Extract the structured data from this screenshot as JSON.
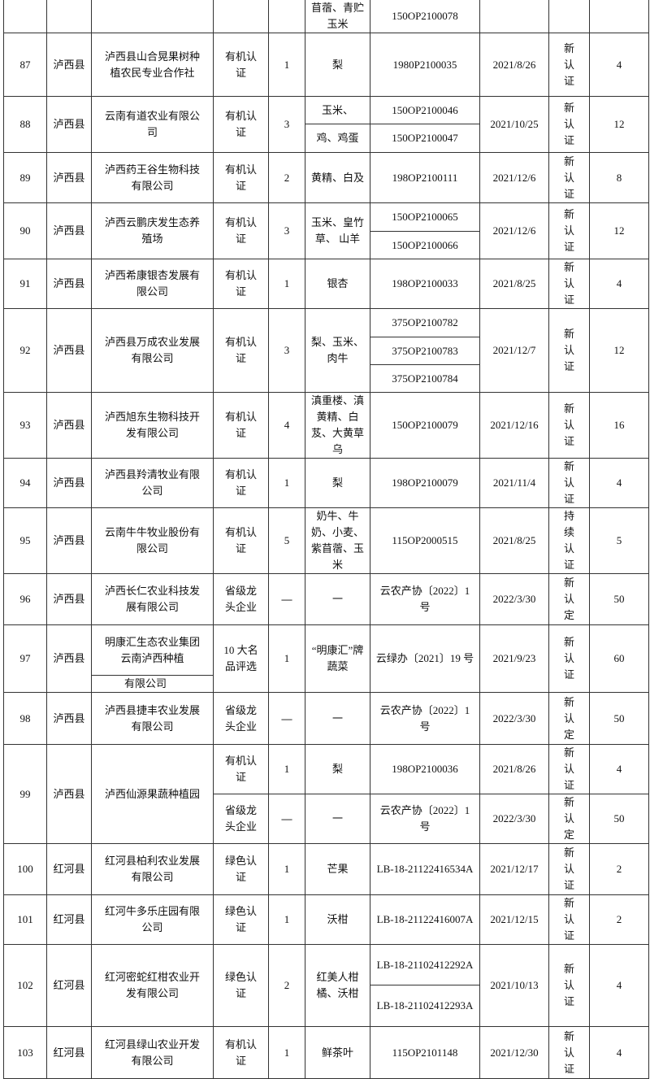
{
  "table": {
    "rows": [
      {
        "product": "苜蓿、青贮玉米",
        "certs": [
          "150OP2100078"
        ]
      },
      {
        "no": 87,
        "county": "泸西县",
        "company": "泸西县山合晃果树种植农民专业合作社",
        "type": "有机认证",
        "count": 1,
        "product": "梨",
        "certs": [
          "1980P2100035"
        ],
        "date": "2021/8/26",
        "status": "新认证",
        "score": 4
      },
      {
        "no": 88,
        "county": "泸西县",
        "company": "云南有道农业有限公司",
        "type": "有机认证",
        "count": 3,
        "product": [
          "玉米、",
          "鸡、鸡蛋"
        ],
        "certs": [
          "150OP2100046",
          "150OP2100047"
        ],
        "date": "2021/10/25",
        "status": "新认证",
        "score": 12
      },
      {
        "no": 89,
        "county": "泸西县",
        "company": "泸西药王谷生物科技有限公司",
        "type": "有机认证",
        "count": 2,
        "product": "黄精、白及",
        "certs": [
          "198OP2100111"
        ],
        "date": "2021/12/6",
        "status": "新认证",
        "score": 8
      },
      {
        "no": 90,
        "county": "泸西县",
        "company": "泸西云鹏庆发生态养殖场",
        "type": "有机认证",
        "count": 3,
        "product": "玉米、皇竹草、 山羊",
        "certs": [
          "150OP2100065",
          "150OP2100066"
        ],
        "date": "2021/12/6",
        "status": "新认证",
        "score": 12
      },
      {
        "no": 91,
        "county": "泸西县",
        "company": "泸西希康银杏发展有限公司",
        "type": "有机认证",
        "count": 1,
        "product": "银杏",
        "certs": [
          "198OP2100033"
        ],
        "date": "2021/8/25",
        "status": "新认证",
        "score": 4
      },
      {
        "no": 92,
        "county": "泸西县",
        "company": "泸西县万成农业发展有限公司",
        "type": "有机认证",
        "count": 3,
        "product": "梨、玉米、肉牛",
        "certs": [
          "375OP2100782",
          "375OP2100783",
          "375OP2100784"
        ],
        "date": "2021/12/7",
        "status": "新认证",
        "score": 12
      },
      {
        "no": 93,
        "county": "泸西县",
        "company": "泸西旭东生物科技开发有限公司",
        "type": "有机认证",
        "count": 4,
        "product": "滇重楼、滇黄精、白芨、大黄草乌",
        "certs": [
          "150OP2100079"
        ],
        "date": "2021/12/16",
        "status": "新认证",
        "score": 16
      },
      {
        "no": 94,
        "county": "泸西县",
        "company": "泸西县羚清牧业有限公司",
        "type": "有机认证",
        "count": 1,
        "product": "梨",
        "certs": [
          "198OP2100079"
        ],
        "date": "2021/11/4",
        "status": "新认证",
        "score": 4
      },
      {
        "no": 95,
        "county": "泸西县",
        "company": "云南牛牛牧业股份有限公司",
        "type": "有机认证",
        "count": 5,
        "product": "奶牛、牛奶、小麦、紫苜蓿、玉米",
        "certs": [
          "115OP2000515"
        ],
        "date": "2021/8/25",
        "status": "持续认证",
        "score": 5
      },
      {
        "no": 96,
        "county": "泸西县",
        "company": "泸西长仁农业科技发展有限公司",
        "type": "省级龙头企业",
        "count": "—",
        "product": "一",
        "certs": [
          "云农产协〔2022〕1 号"
        ],
        "date": "2022/3/30",
        "status": "新认定",
        "score": 50
      },
      {
        "no": 97,
        "county": "泸西县",
        "company": [
          "明康汇生态农业集团云南泸西种植",
          "有限公司"
        ],
        "type": "10 大名品评选",
        "count": 1,
        "product": "“明康汇”牌蔬菜",
        "certs": [
          "云绿办〔2021〕19 号"
        ],
        "date": "2021/9/23",
        "status": "新认证",
        "score": 60
      },
      {
        "no": 98,
        "county": "泸西县",
        "company": "泸西县捷丰农业发展有限公司",
        "type": "省级龙头企业",
        "count": "—",
        "product": "一",
        "certs": [
          "云农产协〔2022〕1 号"
        ],
        "date": "2022/3/30",
        "status": "新认定",
        "score": 50
      },
      {
        "no": 99,
        "county": "泸西县",
        "company": "泸西仙源果蔬种植园",
        "entries": [
          {
            "type": "有机认证",
            "count": 1,
            "product": "梨",
            "cert": "198OP2100036",
            "date": "2021/8/26",
            "status": "新认证",
            "score": 4
          },
          {
            "type": "省级龙头企业",
            "count": "—",
            "product": "一",
            "cert": "云农产协〔2022〕1 号",
            "date": "2022/3/30",
            "status": "新认定",
            "score": 50
          }
        ]
      },
      {
        "no": 100,
        "county": "红河县",
        "company": "红河县柏利农业发展有限公司",
        "type": "绿色认证",
        "count": 1,
        "product": "芒果",
        "certs": [
          "LB-18-21122416534A"
        ],
        "date": "2021/12/17",
        "status": "新认证",
        "score": 2
      },
      {
        "no": 101,
        "county": "红河县",
        "company": "红河牛多乐庄园有限公司",
        "type": "绿色认证",
        "count": 1,
        "product": "沃柑",
        "certs": [
          "LB-18-21122416007A"
        ],
        "date": "2021/12/15",
        "status": "新认证",
        "score": 2
      },
      {
        "no": 102,
        "county": "红河县",
        "company": "红河密蛇红柑农业开发有限公司",
        "type": "绿色认证",
        "count": 2,
        "product": "红美人柑橘、沃柑",
        "certs": [
          "LB-18-21102412292A",
          "LB-18-21102412293A"
        ],
        "date": "2021/10/13",
        "status": "新认证",
        "score": 4
      },
      {
        "no": 103,
        "county": "红河县",
        "company": "红河县绿山农业开发有限公司",
        "type": "有机认证",
        "count": 1,
        "product": "鲜茶叶",
        "certs": [
          "115OP2101148"
        ],
        "date": "2021/12/30",
        "status": "新认证",
        "score": 4
      }
    ]
  }
}
